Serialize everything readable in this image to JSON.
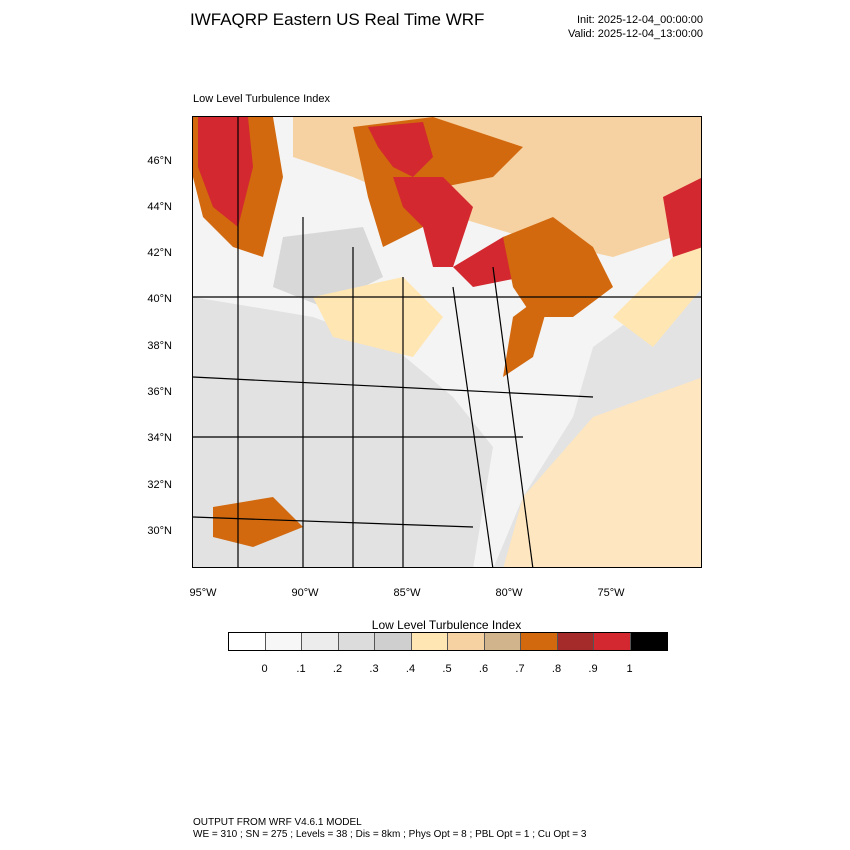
{
  "header": {
    "title": "IWFAQRP Eastern US Real Time WRF",
    "init": "Init: 2025-12-04_00:00:00",
    "valid": "Valid: 2025-12-04_13:00:00"
  },
  "panel": {
    "label": "Low Level Turbulence Index"
  },
  "map": {
    "lat_labels": [
      "46°N",
      "44°N",
      "42°N",
      "40°N",
      "38°N",
      "36°N",
      "34°N",
      "32°N",
      "30°N"
    ],
    "lon_labels": [
      "95°W",
      "90°W",
      "85°W",
      "80°W",
      "75°W"
    ]
  },
  "legend": {
    "title": "Low Level Turbulence Index",
    "ticks": [
      "0",
      ".1",
      ".2",
      ".3",
      ".4",
      ".5",
      ".6",
      ".7",
      ".8",
      ".9",
      "1"
    ],
    "colors": [
      "#ffffff",
      "#f7f7f7",
      "#ececec",
      "#dcdcdc",
      "#cfcfcf",
      "#ffe6b3",
      "#f6d2a2",
      "#d2b48c",
      "#d2690f",
      "#a52a2a",
      "#d3282f",
      "#000000"
    ]
  },
  "footer": {
    "line1": "OUTPUT FROM WRF V4.6.1 MODEL",
    "line2": "WE = 310 ; SN = 275 ; Levels = 38 ; Dis = 8km ; Phys Opt = 8 ; PBL Opt = 1 ; Cu Opt = 3"
  }
}
